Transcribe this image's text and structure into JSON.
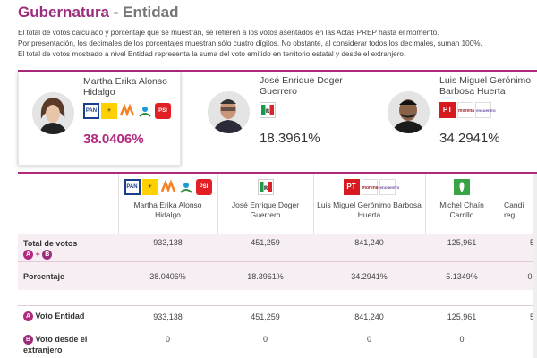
{
  "header": {
    "title": "Gubernatura",
    "separator": " - ",
    "subtitle": "Entidad"
  },
  "notes": [
    "El total de votos calculado y porcentaje que se muestran, se refieren a los votos asentados en las Actas PREP hasta el momento.",
    "Por presentación, los decimales de los porcentajes muestran sólo cuatro dígitos. No obstante, al considerar todos los decimales, suman 100%.",
    "El total de votos mostrado a nivel Entidad representa la suma del voto emitido en territorio estatal y desde el extranjero."
  ],
  "cards": [
    {
      "name_line1": "Martha Erika Alonso",
      "name_line2": "Hidalgo",
      "pct": "38.0406%",
      "logos": [
        "PAN",
        "PRD",
        "MC",
        "CPP",
        "PSI"
      ]
    },
    {
      "name_line1": "José Enrique Doger",
      "name_line2": "Guerrero",
      "pct": "18.3961%",
      "logos": [
        "PRI"
      ]
    },
    {
      "name_line1": "Luis Miguel Gerónimo",
      "name_line2": "Barbosa Huerta",
      "pct": "34.2941%",
      "logos": [
        "PT",
        "MORENA",
        "PES"
      ]
    }
  ],
  "table": {
    "columns": [
      {
        "name_line1": "Martha Erika Alonso",
        "name_line2": "Hidalgo"
      },
      {
        "name_line1": "José Enrique Doger",
        "name_line2": "Guerrero"
      },
      {
        "name_line1": "Luis Miguel Gerónimo Barbosa",
        "name_line2": "Huerta"
      },
      {
        "name_line1": "Michel Chaín",
        "name_line2": "Carrillo"
      },
      {
        "name_line1": "Candi",
        "name_line2": "reg"
      }
    ],
    "rows": {
      "total": {
        "label": "Total de votos",
        "badge_a": "A",
        "plus": "+",
        "badge_b": "B",
        "values": [
          "933,138",
          "451,259",
          "841,240",
          "125,961",
          "5"
        ]
      },
      "porcentaje": {
        "label": "Porcentaje",
        "values": [
          "38.0406%",
          "18.3961%",
          "34.2941%",
          "5.1349%",
          "0."
        ]
      },
      "entidad": {
        "badge": "A",
        "label": "Voto Entidad",
        "values": [
          "933,138",
          "451,259",
          "841,240",
          "125,961",
          "5"
        ]
      },
      "extranjero": {
        "badge": "B",
        "label_line1": "Voto desde el",
        "label_line2": "extranjero",
        "values": [
          "0",
          "0",
          "0",
          "0",
          ""
        ]
      }
    }
  },
  "colors": {
    "accent": "#b0297f",
    "title": "#9c2d7d"
  }
}
